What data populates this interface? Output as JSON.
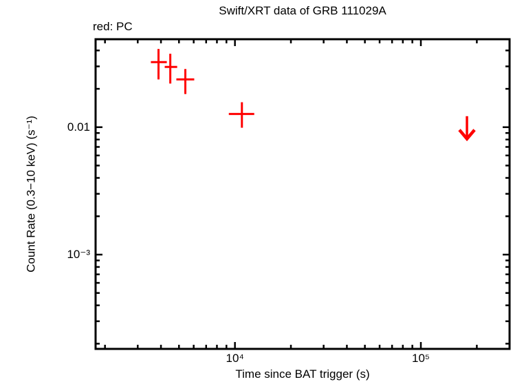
{
  "figure": {
    "background": "#ffffff",
    "text_color": "#000000"
  },
  "chart_data": {
    "type": "scatter",
    "title": "Swift/XRT data of GRB 111029A",
    "annotation": "red: PC",
    "xlabel": "Time since BAT trigger (s)",
    "ylabel": "Count Rate (0.3−10 keV) (s⁻¹)",
    "x_scale": "log",
    "y_scale": "log",
    "xlim": [
      1780,
      300000
    ],
    "ylim": [
      0.000182,
      0.049
    ],
    "grid": "off",
    "legend": "none",
    "axis_color": "#000000",
    "x_major_ticks": [
      {
        "value": 10000,
        "label": "10⁴"
      },
      {
        "value": 100000,
        "label": "10⁵"
      }
    ],
    "y_major_ticks": [
      {
        "value": 0.01,
        "label": "0.01"
      },
      {
        "value": 0.001,
        "label": "10⁻³"
      }
    ],
    "series": [
      {
        "name": "PC",
        "color": "#ff0000",
        "marker": "cross-with-error-bars",
        "points": [
          {
            "t": 3880,
            "t_lo": 3530,
            "t_hi": 4300,
            "rate": 0.0324,
            "rate_lo": 0.0237,
            "rate_hi": 0.0411
          },
          {
            "t": 4490,
            "t_lo": 4190,
            "t_hi": 4890,
            "rate": 0.0297,
            "rate_lo": 0.022,
            "rate_hi": 0.0377
          },
          {
            "t": 5410,
            "t_lo": 4840,
            "t_hi": 6040,
            "rate": 0.0237,
            "rate_lo": 0.0182,
            "rate_hi": 0.0286
          },
          {
            "t": 10900,
            "t_lo": 9270,
            "t_hi": 12700,
            "rate": 0.0127,
            "rate_lo": 0.0099,
            "rate_hi": 0.0157
          }
        ],
        "upper_limits": [
          {
            "t": 177000,
            "rate": 0.0122,
            "arrow_to": 0.0081
          }
        ]
      }
    ]
  }
}
